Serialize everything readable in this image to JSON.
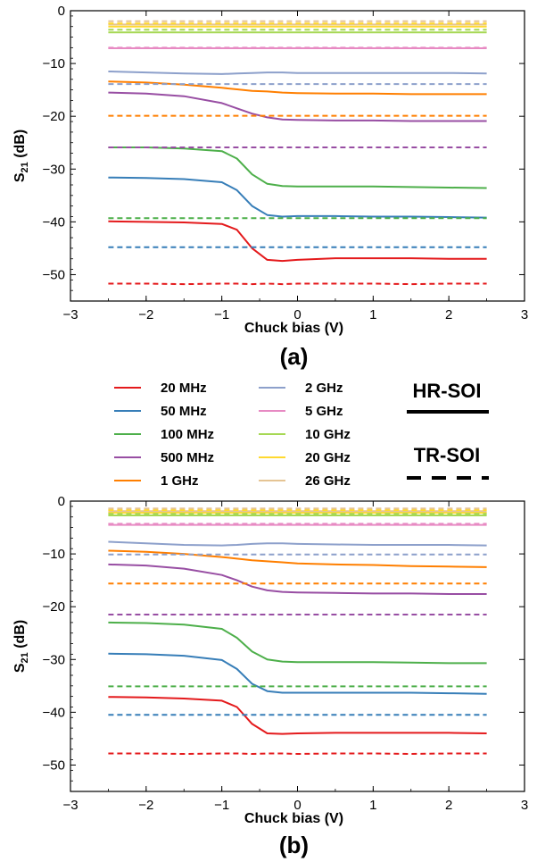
{
  "legend": {
    "hr_label": "HR-SOI",
    "tr_label": "TR-SOI",
    "entries": [
      {
        "name": "20 MHz",
        "color": "#e41a1c"
      },
      {
        "name": "50 MHz",
        "color": "#377eb8"
      },
      {
        "name": "100 MHz",
        "color": "#4daf4a"
      },
      {
        "name": "500 MHz",
        "color": "#984ea3"
      },
      {
        "name": "1 GHz",
        "color": "#ff7f00"
      },
      {
        "name": "2 GHz",
        "color": "#8da0cb"
      },
      {
        "name": "5 GHz",
        "color": "#e78ac3"
      },
      {
        "name": "10 GHz",
        "color": "#a6d854"
      },
      {
        "name": "20 GHz",
        "color": "#ffd92f"
      },
      {
        "name": "26 GHz",
        "color": "#e5c494"
      }
    ]
  },
  "chart_data": [
    {
      "type": "line",
      "panel_label": "(a)",
      "xlabel": "Chuck bias (V)",
      "ylabel": "S21 (dB)",
      "ylabel_main": "S",
      "ylabel_sub": "21",
      "ylabel_unit": " (dB)",
      "xlim": [
        -3,
        3
      ],
      "ylim": [
        -55,
        0
      ],
      "xticks": [
        -3,
        -2,
        -1,
        0,
        1,
        2,
        3
      ],
      "yticks": [
        0,
        -10,
        -20,
        -30,
        -40,
        -50
      ],
      "x": [
        -2.5,
        -2.0,
        -1.5,
        -1.0,
        -0.8,
        -0.6,
        -0.4,
        -0.2,
        0.0,
        0.5,
        1.0,
        1.5,
        2.0,
        2.5
      ],
      "series": [
        {
          "name": "20 MHz",
          "substrate": "HR-SOI",
          "values": [
            -39.9,
            -40.0,
            -40.1,
            -40.4,
            -41.5,
            -45.0,
            -47.2,
            -47.4,
            -47.2,
            -46.9,
            -46.9,
            -46.9,
            -47.0,
            -47.0
          ]
        },
        {
          "name": "50 MHz",
          "substrate": "HR-SOI",
          "values": [
            -31.6,
            -31.7,
            -31.9,
            -32.5,
            -34.0,
            -37.0,
            -38.7,
            -39.0,
            -38.9,
            -38.9,
            -39.0,
            -39.0,
            -39.1,
            -39.2
          ]
        },
        {
          "name": "100 MHz",
          "substrate": "HR-SOI",
          "values": [
            -25.9,
            -25.9,
            -26.1,
            -26.6,
            -28.0,
            -31.0,
            -32.8,
            -33.2,
            -33.3,
            -33.3,
            -33.3,
            -33.4,
            -33.5,
            -33.6
          ]
        },
        {
          "name": "500 MHz",
          "substrate": "HR-SOI",
          "values": [
            -15.5,
            -15.7,
            -16.2,
            -17.5,
            -18.5,
            -19.5,
            -20.2,
            -20.6,
            -20.7,
            -20.8,
            -20.8,
            -20.9,
            -20.9,
            -20.9
          ]
        },
        {
          "name": "1 GHz",
          "substrate": "HR-SOI",
          "values": [
            -13.4,
            -13.6,
            -14.0,
            -14.6,
            -14.9,
            -15.2,
            -15.3,
            -15.5,
            -15.6,
            -15.7,
            -15.7,
            -15.8,
            -15.8,
            -15.8
          ]
        },
        {
          "name": "2 GHz",
          "substrate": "HR-SOI",
          "values": [
            -11.5,
            -11.7,
            -11.9,
            -12.0,
            -11.9,
            -11.8,
            -11.7,
            -11.7,
            -11.8,
            -11.8,
            -11.8,
            -11.8,
            -11.8,
            -11.9
          ]
        },
        {
          "name": "5 GHz",
          "substrate": "HR-SOI",
          "values": [
            -7.1,
            -7.1,
            -7.1,
            -7.1,
            -7.1,
            -7.1,
            -7.1,
            -7.1,
            -7.1,
            -7.1,
            -7.1,
            -7.1,
            -7.1,
            -7.1
          ]
        },
        {
          "name": "10 GHz",
          "substrate": "HR-SOI",
          "values": [
            -4.1,
            -4.1,
            -4.1,
            -4.1,
            -4.1,
            -4.1,
            -4.1,
            -4.1,
            -4.1,
            -4.1,
            -4.1,
            -4.1,
            -4.1,
            -4.1
          ]
        },
        {
          "name": "20 GHz",
          "substrate": "HR-SOI",
          "values": [
            -3.0,
            -3.0,
            -3.0,
            -3.0,
            -3.0,
            -3.0,
            -3.0,
            -3.0,
            -3.0,
            -3.0,
            -3.0,
            -3.0,
            -3.0,
            -3.0
          ]
        },
        {
          "name": "26 GHz",
          "substrate": "HR-SOI",
          "values": [
            -2.6,
            -2.6,
            -2.6,
            -2.6,
            -2.6,
            -2.6,
            -2.6,
            -2.6,
            -2.6,
            -2.6,
            -2.6,
            -2.6,
            -2.6,
            -2.6
          ]
        },
        {
          "name": "20 MHz",
          "substrate": "TR-SOI",
          "values": [
            -51.7,
            -51.7,
            -51.8,
            -51.7,
            -51.7,
            -51.8,
            -51.7,
            -51.8,
            -51.7,
            -51.7,
            -51.7,
            -51.8,
            -51.7,
            -51.7
          ]
        },
        {
          "name": "50 MHz",
          "substrate": "TR-SOI",
          "values": [
            -44.8,
            -44.8,
            -44.8,
            -44.8,
            -44.8,
            -44.8,
            -44.8,
            -44.8,
            -44.8,
            -44.8,
            -44.8,
            -44.8,
            -44.8,
            -44.8
          ]
        },
        {
          "name": "100 MHz",
          "substrate": "TR-SOI",
          "values": [
            -39.3,
            -39.3,
            -39.3,
            -39.3,
            -39.3,
            -39.3,
            -39.3,
            -39.3,
            -39.3,
            -39.3,
            -39.3,
            -39.3,
            -39.3,
            -39.3
          ]
        },
        {
          "name": "500 MHz",
          "substrate": "TR-SOI",
          "values": [
            -25.9,
            -25.9,
            -25.9,
            -25.9,
            -25.9,
            -25.9,
            -25.9,
            -25.9,
            -25.9,
            -25.9,
            -25.9,
            -25.9,
            -25.9,
            -25.9
          ]
        },
        {
          "name": "1 GHz",
          "substrate": "TR-SOI",
          "values": [
            -19.9,
            -19.9,
            -19.9,
            -19.9,
            -19.9,
            -19.9,
            -19.9,
            -19.9,
            -19.9,
            -19.9,
            -19.9,
            -19.9,
            -19.9,
            -19.9
          ]
        },
        {
          "name": "2 GHz",
          "substrate": "TR-SOI",
          "values": [
            -13.9,
            -13.9,
            -13.9,
            -13.9,
            -13.9,
            -13.9,
            -13.9,
            -13.9,
            -13.9,
            -13.9,
            -13.9,
            -13.9,
            -13.9,
            -13.9
          ]
        },
        {
          "name": "5 GHz",
          "substrate": "TR-SOI",
          "values": [
            -7.0,
            -7.0,
            -7.0,
            -7.0,
            -7.0,
            -7.0,
            -7.0,
            -7.0,
            -7.0,
            -7.0,
            -7.0,
            -7.0,
            -7.0,
            -7.0
          ]
        },
        {
          "name": "10 GHz",
          "substrate": "TR-SOI",
          "values": [
            -3.6,
            -3.6,
            -3.6,
            -3.6,
            -3.6,
            -3.6,
            -3.6,
            -3.6,
            -3.6,
            -3.6,
            -3.6,
            -3.6,
            -3.6,
            -3.6
          ]
        },
        {
          "name": "20 GHz",
          "substrate": "TR-SOI",
          "values": [
            -2.4,
            -2.4,
            -2.4,
            -2.4,
            -2.4,
            -2.4,
            -2.4,
            -2.4,
            -2.4,
            -2.4,
            -2.4,
            -2.4,
            -2.4,
            -2.4
          ]
        },
        {
          "name": "26 GHz",
          "substrate": "TR-SOI",
          "values": [
            -2.0,
            -2.0,
            -2.0,
            -2.0,
            -2.0,
            -2.0,
            -2.0,
            -2.0,
            -2.0,
            -2.0,
            -2.0,
            -2.0,
            -2.0,
            -2.0
          ]
        }
      ]
    },
    {
      "type": "line",
      "panel_label": "(b)",
      "xlabel": "Chuck bias (V)",
      "ylabel": "S21 (dB)",
      "ylabel_main": "S",
      "ylabel_sub": "21",
      "ylabel_unit": " (dB)",
      "xlim": [
        -3,
        3
      ],
      "ylim": [
        -55,
        0
      ],
      "xticks": [
        -3,
        -2,
        -1,
        0,
        1,
        2,
        3
      ],
      "yticks": [
        0,
        -10,
        -20,
        -30,
        -40,
        -50
      ],
      "x": [
        -2.5,
        -2.0,
        -1.5,
        -1.0,
        -0.8,
        -0.6,
        -0.4,
        -0.2,
        0.0,
        0.5,
        1.0,
        1.5,
        2.0,
        2.5
      ],
      "series": [
        {
          "name": "20 MHz",
          "substrate": "HR-SOI",
          "values": [
            -37.1,
            -37.2,
            -37.4,
            -37.8,
            -39.0,
            -42.2,
            -44.0,
            -44.1,
            -44.0,
            -43.9,
            -43.9,
            -43.9,
            -43.9,
            -44.0
          ]
        },
        {
          "name": "50 MHz",
          "substrate": "HR-SOI",
          "values": [
            -28.9,
            -29.0,
            -29.3,
            -30.1,
            -31.8,
            -34.6,
            -36.0,
            -36.3,
            -36.3,
            -36.3,
            -36.3,
            -36.3,
            -36.4,
            -36.5
          ]
        },
        {
          "name": "100 MHz",
          "substrate": "HR-SOI",
          "values": [
            -23.0,
            -23.1,
            -23.4,
            -24.2,
            -25.9,
            -28.5,
            -30.0,
            -30.4,
            -30.5,
            -30.5,
            -30.5,
            -30.6,
            -30.7,
            -30.7
          ]
        },
        {
          "name": "500 MHz",
          "substrate": "HR-SOI",
          "values": [
            -12.0,
            -12.2,
            -12.8,
            -14.0,
            -15.0,
            -16.2,
            -16.9,
            -17.2,
            -17.3,
            -17.4,
            -17.5,
            -17.5,
            -17.6,
            -17.6
          ]
        },
        {
          "name": "1 GHz",
          "substrate": "HR-SOI",
          "values": [
            -9.4,
            -9.6,
            -10.0,
            -10.6,
            -10.9,
            -11.2,
            -11.4,
            -11.6,
            -11.8,
            -12.0,
            -12.1,
            -12.3,
            -12.4,
            -12.5
          ]
        },
        {
          "name": "2 GHz",
          "substrate": "HR-SOI",
          "values": [
            -7.7,
            -8.0,
            -8.3,
            -8.4,
            -8.3,
            -8.1,
            -8.0,
            -8.0,
            -8.1,
            -8.2,
            -8.3,
            -8.3,
            -8.3,
            -8.4
          ]
        },
        {
          "name": "5 GHz",
          "substrate": "HR-SOI",
          "values": [
            -4.5,
            -4.5,
            -4.5,
            -4.5,
            -4.5,
            -4.5,
            -4.5,
            -4.5,
            -4.5,
            -4.5,
            -4.5,
            -4.5,
            -4.5,
            -4.5
          ]
        },
        {
          "name": "10 GHz",
          "substrate": "HR-SOI",
          "values": [
            -2.7,
            -2.7,
            -2.7,
            -2.7,
            -2.7,
            -2.7,
            -2.7,
            -2.7,
            -2.7,
            -2.7,
            -2.7,
            -2.7,
            -2.7,
            -2.7
          ]
        },
        {
          "name": "20 GHz",
          "substrate": "HR-SOI",
          "values": [
            -2.2,
            -2.2,
            -2.2,
            -2.2,
            -2.2,
            -2.2,
            -2.2,
            -2.2,
            -2.2,
            -2.2,
            -2.2,
            -2.2,
            -2.2,
            -2.2
          ]
        },
        {
          "name": "26 GHz",
          "substrate": "HR-SOI",
          "values": [
            -1.9,
            -1.9,
            -1.9,
            -1.9,
            -1.9,
            -1.9,
            -1.9,
            -1.9,
            -1.9,
            -1.9,
            -1.9,
            -1.9,
            -1.9,
            -1.9
          ]
        },
        {
          "name": "20 MHz",
          "substrate": "TR-SOI",
          "values": [
            -47.8,
            -47.8,
            -47.9,
            -47.8,
            -47.8,
            -47.9,
            -47.8,
            -47.8,
            -47.9,
            -47.8,
            -47.8,
            -47.9,
            -47.8,
            -47.8
          ]
        },
        {
          "name": "50 MHz",
          "substrate": "TR-SOI",
          "values": [
            -40.5,
            -40.5,
            -40.5,
            -40.5,
            -40.5,
            -40.5,
            -40.5,
            -40.5,
            -40.5,
            -40.5,
            -40.5,
            -40.5,
            -40.5,
            -40.5
          ]
        },
        {
          "name": "100 MHz",
          "substrate": "TR-SOI",
          "values": [
            -35.1,
            -35.1,
            -35.1,
            -35.1,
            -35.1,
            -35.1,
            -35.1,
            -35.1,
            -35.1,
            -35.1,
            -35.1,
            -35.1,
            -35.1,
            -35.1
          ]
        },
        {
          "name": "500 MHz",
          "substrate": "TR-SOI",
          "values": [
            -21.5,
            -21.5,
            -21.5,
            -21.5,
            -21.5,
            -21.5,
            -21.5,
            -21.5,
            -21.5,
            -21.5,
            -21.5,
            -21.5,
            -21.5,
            -21.5
          ]
        },
        {
          "name": "1 GHz",
          "substrate": "TR-SOI",
          "values": [
            -15.6,
            -15.6,
            -15.6,
            -15.6,
            -15.6,
            -15.6,
            -15.6,
            -15.6,
            -15.6,
            -15.6,
            -15.6,
            -15.6,
            -15.6,
            -15.6
          ]
        },
        {
          "name": "2 GHz",
          "substrate": "TR-SOI",
          "values": [
            -10.1,
            -10.1,
            -10.1,
            -10.1,
            -10.1,
            -10.1,
            -10.1,
            -10.1,
            -10.1,
            -10.1,
            -10.1,
            -10.1,
            -10.1,
            -10.1
          ]
        },
        {
          "name": "5 GHz",
          "substrate": "TR-SOI",
          "values": [
            -4.3,
            -4.3,
            -4.3,
            -4.3,
            -4.3,
            -4.3,
            -4.3,
            -4.3,
            -4.3,
            -4.3,
            -4.3,
            -4.3,
            -4.3,
            -4.3
          ]
        },
        {
          "name": "10 GHz",
          "substrate": "TR-SOI",
          "values": [
            -2.4,
            -2.4,
            -2.4,
            -2.4,
            -2.4,
            -2.4,
            -2.4,
            -2.4,
            -2.4,
            -2.4,
            -2.4,
            -2.4,
            -2.4,
            -2.4
          ]
        },
        {
          "name": "20 GHz",
          "substrate": "TR-SOI",
          "values": [
            -1.7,
            -1.7,
            -1.7,
            -1.7,
            -1.7,
            -1.7,
            -1.7,
            -1.7,
            -1.7,
            -1.7,
            -1.7,
            -1.7,
            -1.7,
            -1.7
          ]
        },
        {
          "name": "26 GHz",
          "substrate": "TR-SOI",
          "values": [
            -1.4,
            -1.4,
            -1.4,
            -1.4,
            -1.4,
            -1.4,
            -1.4,
            -1.4,
            -1.4,
            -1.4,
            -1.4,
            -1.4,
            -1.4,
            -1.4
          ]
        }
      ]
    }
  ]
}
